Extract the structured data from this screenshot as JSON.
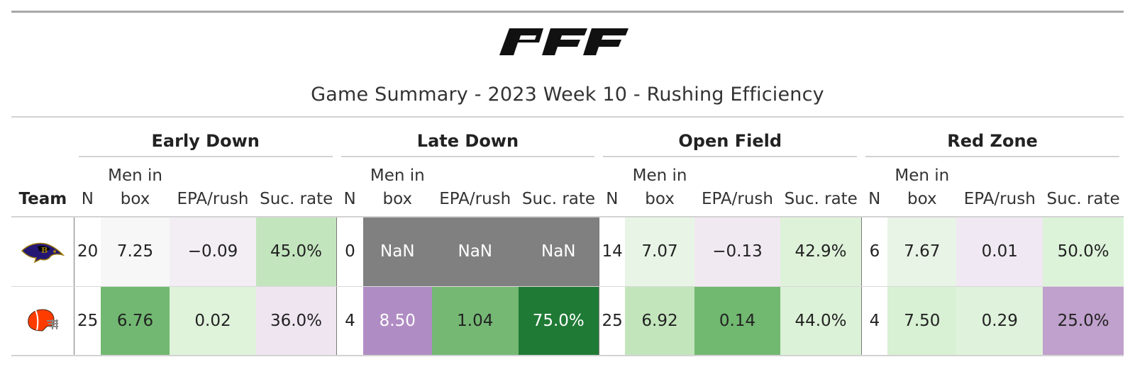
{
  "brand": {
    "logo_text": "PFF"
  },
  "title": "Game Summary - 2023 Week 10 - Rushing Efficiency",
  "groups": [
    {
      "label": "Early Down"
    },
    {
      "label": "Late Down"
    },
    {
      "label": "Open Field"
    },
    {
      "label": "Red Zone"
    }
  ],
  "columns": {
    "team": "Team",
    "n": "N",
    "men_in_box_line1": "Men in",
    "men_in_box_line2": "box",
    "epa": "EPA/rush",
    "suc": "Suc. rate"
  },
  "rows": [
    {
      "team_icon": "ravens-logo-icon",
      "cells": [
        [
          "20",
          "7.25",
          "−0.09",
          "45.0%"
        ],
        [
          "0",
          "NaN",
          "NaN",
          "NaN"
        ],
        [
          "14",
          "7.07",
          "−0.13",
          "42.9%"
        ],
        [
          "6",
          "7.67",
          "0.01",
          "50.0%"
        ]
      ],
      "colors": [
        [
          "#ffffff",
          "#f7f7f7",
          "#f2eef4",
          "#c3e5be"
        ],
        [
          "#ffffff",
          "#808080",
          "#808080",
          "#808080"
        ],
        [
          "#ffffff",
          "#e8f5e6",
          "#f1e9f1",
          "#def2da"
        ],
        [
          "#ffffff",
          "#e8f4e6",
          "#f0e8f2",
          "#dcf3d9"
        ]
      ]
    },
    {
      "team_icon": "browns-helmet-icon",
      "cells": [
        [
          "25",
          "6.76",
          "0.02",
          "36.0%"
        ],
        [
          "4",
          "8.50",
          "1.04",
          "75.0%"
        ],
        [
          "25",
          "6.92",
          "0.14",
          "44.0%"
        ],
        [
          "4",
          "7.50",
          "0.29",
          "25.0%"
        ]
      ],
      "colors": [
        [
          "#ffffff",
          "#72b872",
          "#dff3db",
          "#efe5f1"
        ],
        [
          "#ffffff",
          "#b08cc4",
          "#74b874",
          "#1f7a35"
        ],
        [
          "#ffffff",
          "#c3e5bc",
          "#71b871",
          "#dcf2d8"
        ],
        [
          "#ffffff",
          "#d8f0d3",
          "#dff2db",
          "#c0a0cc"
        ]
      ],
      "text_colors": [
        [
          "#222222",
          "#222222",
          "#222222",
          "#222222"
        ],
        [
          "#222222",
          "#ffffff",
          "#222222",
          "#ffffff"
        ],
        [
          "#222222",
          "#222222",
          "#222222",
          "#222222"
        ],
        [
          "#222222",
          "#222222",
          "#222222",
          "#222222"
        ]
      ]
    }
  ],
  "nan_text_color": "#ffffff"
}
